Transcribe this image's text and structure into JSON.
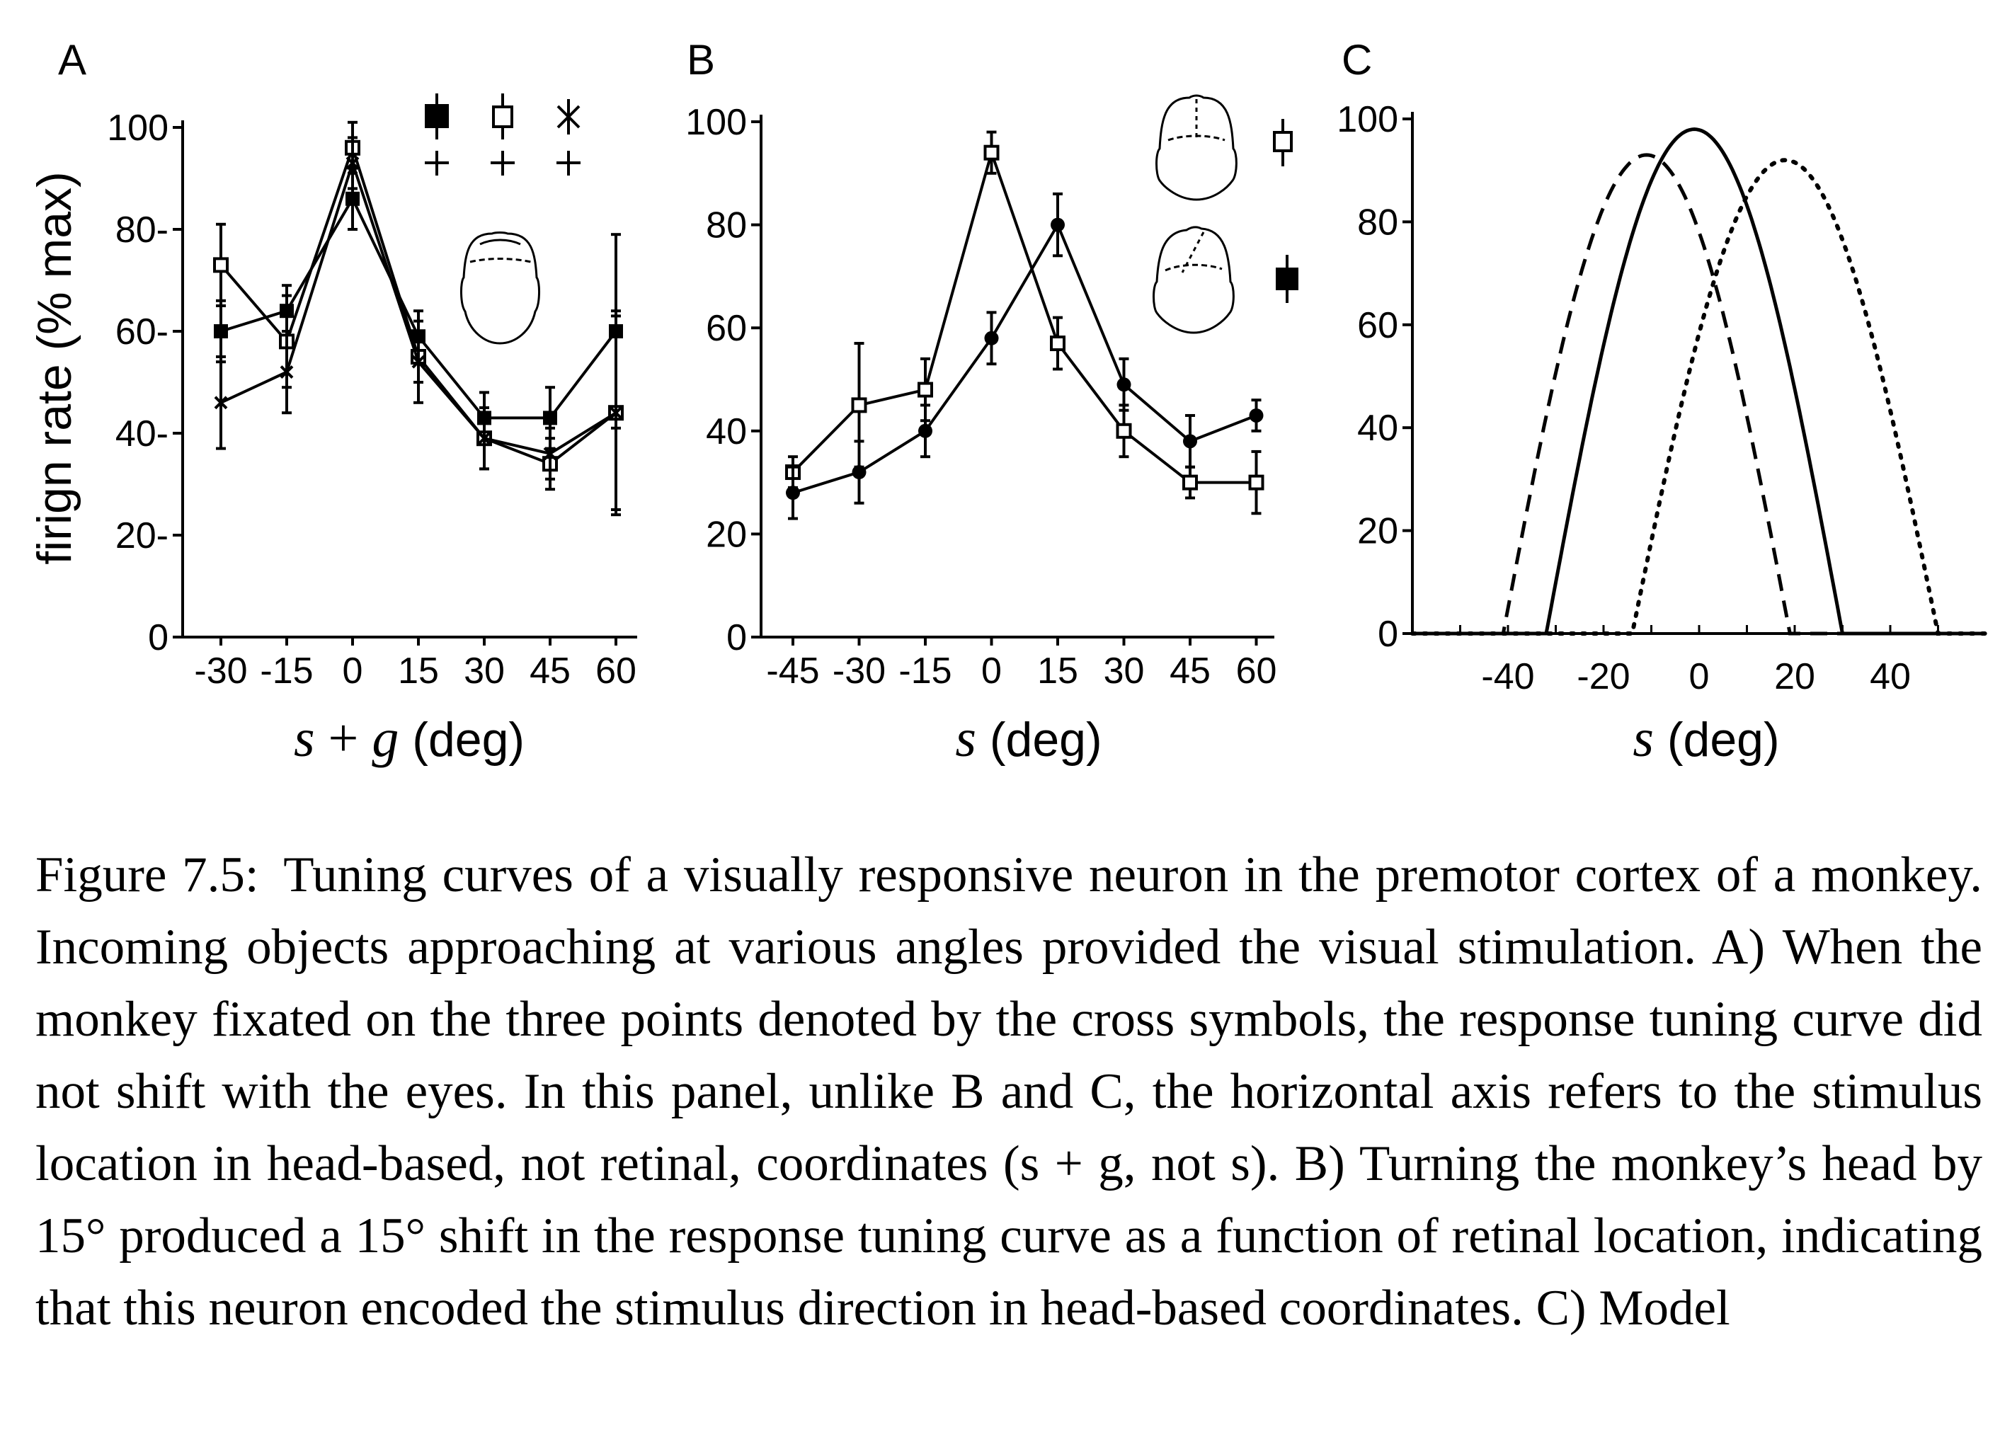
{
  "chart_data": [
    {
      "panel": "A",
      "type": "line",
      "ylabel": "firign rate (% max)",
      "xlabel_parts": [
        "s",
        " + ",
        "g",
        " (deg)"
      ],
      "x": [
        -30,
        -15,
        0,
        15,
        30,
        45,
        60
      ],
      "xticks": [
        "-30",
        "-15",
        "0",
        "15",
        "30",
        "45",
        "60"
      ],
      "yticks": [
        "0",
        "20-",
        "40-",
        "60-",
        "80-",
        "100"
      ],
      "ylim": [
        0,
        100
      ],
      "series": [
        {
          "marker": "filled-square",
          "values": [
            60,
            64,
            86,
            59,
            43,
            43,
            60
          ],
          "err": [
            6,
            5,
            6,
            5,
            5,
            6,
            19
          ]
        },
        {
          "marker": "open-square",
          "values": [
            73,
            58,
            96,
            55,
            39,
            34,
            44
          ],
          "err": [
            8,
            9,
            5,
            5,
            6,
            5,
            19
          ]
        },
        {
          "marker": "star",
          "values": [
            46,
            52,
            93,
            54,
            39,
            36,
            44
          ],
          "err": [
            9,
            8,
            5,
            8,
            6,
            5,
            20
          ]
        }
      ]
    },
    {
      "panel": "B",
      "type": "line",
      "xlabel_parts": [
        "s",
        " (deg)"
      ],
      "x": [
        -45,
        -30,
        -15,
        0,
        15,
        30,
        45,
        60
      ],
      "xticks": [
        "-45",
        "-30",
        "-15",
        "0",
        "15",
        "30",
        "45",
        "60"
      ],
      "yticks": [
        "0",
        "20",
        "40",
        "60",
        "80",
        "100"
      ],
      "ylim": [
        0,
        100
      ],
      "series": [
        {
          "marker": "open-square",
          "values": [
            32,
            45,
            48,
            94,
            57,
            40,
            30,
            30
          ],
          "err": [
            3,
            12,
            6,
            4,
            5,
            5,
            3,
            6
          ]
        },
        {
          "marker": "filled-circle",
          "values": [
            28,
            32,
            40,
            58,
            80,
            49,
            38,
            43
          ],
          "err": [
            5,
            6,
            5,
            5,
            6,
            5,
            5,
            3
          ]
        }
      ]
    },
    {
      "panel": "C",
      "type": "line",
      "xlabel_parts": [
        "s",
        " (deg)"
      ],
      "x_range": [
        -60,
        60
      ],
      "xticks": [
        "-40",
        "-20",
        "0",
        "20",
        "40"
      ],
      "xtick_values": [
        -40,
        -20,
        0,
        20,
        40
      ],
      "yticks": [
        "0",
        "20",
        "40",
        "60",
        "80",
        "100"
      ],
      "ylim": [
        0,
        100
      ],
      "series": [
        {
          "style": "solid",
          "peak_x": -1,
          "peak_y": 98,
          "half_width": 31
        },
        {
          "style": "dashed",
          "peak_x": -11,
          "peak_y": 93,
          "half_width": 30
        },
        {
          "style": "dotted",
          "peak_x": 18,
          "peak_y": 92,
          "half_width": 32
        }
      ]
    }
  ],
  "caption": {
    "label": "Figure 7.5:",
    "text": "Tuning curves of a visually responsive neuron in the premotor cortex of a monkey. Incoming objects approaching at various angles provided the visual stimulation. A) When the monkey fixated on the three points denoted by the cross symbols, the response tuning curve did not shift with the eyes. In this panel, unlike B and C, the horizontal axis refers to the stimulus location in head-based, not retinal, coordinates (s + g, not s). B) Turning the monkey’s head by 15° produced a 15° shift in the response tuning curve as a function of retinal location, indicating that this neuron encoded the stimulus direction in head-based coordinates. C) Model"
  }
}
